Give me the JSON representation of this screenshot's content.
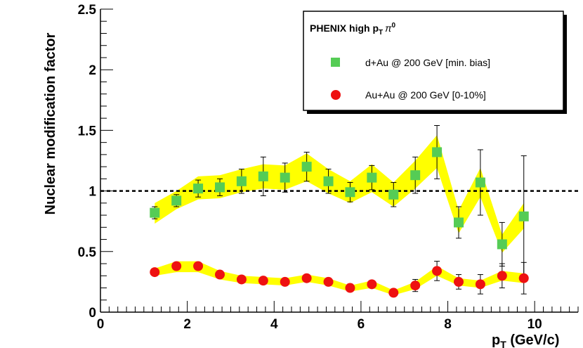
{
  "chart_data": {
    "type": "scatter",
    "title": "",
    "xlabel_main": "p",
    "xlabel_sub": "T",
    "xlabel_unit": " (GeV/c)",
    "ylabel": "Nuclear modification factor",
    "xlim": [
      0,
      11
    ],
    "ylim": [
      0,
      2.5
    ],
    "x_ticks": [
      0,
      2,
      4,
      6,
      8,
      10
    ],
    "y_ticks": [
      0,
      0.5,
      1,
      1.5,
      2,
      2.5
    ],
    "y_tick_labels": [
      "0",
      "0.5",
      "1",
      "1.5",
      "2",
      "2.5"
    ],
    "grid": false,
    "reference_line": 1,
    "legend": {
      "placement": "top-right",
      "title_main": "PHENIX high p",
      "title_sub": "T",
      "title_pi": "π",
      "title_sup": "0"
    },
    "series": [
      {
        "name": "d+Au @ 200 GeV [min. bias]",
        "marker": "square",
        "color": "#55cc55",
        "band_color": "#ffff00",
        "x": [
          1.25,
          1.75,
          2.25,
          2.75,
          3.25,
          3.75,
          4.25,
          4.75,
          5.25,
          5.75,
          6.25,
          6.75,
          7.25,
          7.75,
          8.25,
          8.75,
          9.25,
          9.75
        ],
        "y": [
          0.82,
          0.92,
          1.02,
          1.03,
          1.08,
          1.12,
          1.11,
          1.2,
          1.08,
          0.99,
          1.11,
          0.97,
          1.13,
          1.32,
          0.74,
          1.07,
          0.56,
          0.79
        ],
        "err": [
          0.05,
          0.05,
          0.07,
          0.07,
          0.1,
          0.16,
          0.12,
          0.12,
          0.1,
          0.08,
          0.1,
          0.1,
          0.15,
          0.22,
          0.13,
          0.27,
          0.18,
          0.5
        ],
        "band_lo": [
          0.73,
          0.85,
          0.93,
          0.94,
          0.99,
          1.02,
          1.01,
          1.08,
          0.98,
          0.9,
          0.99,
          0.87,
          1.02,
          1.19,
          0.65,
          0.95,
          0.49,
          0.69
        ],
        "band_hi": [
          0.9,
          1.0,
          1.12,
          1.13,
          1.18,
          1.22,
          1.21,
          1.31,
          1.18,
          1.08,
          1.22,
          1.07,
          1.25,
          1.46,
          0.84,
          1.19,
          0.64,
          0.9
        ]
      },
      {
        "name": "Au+Au @ 200 GeV [0-10%]",
        "marker": "circle",
        "color": "#ee1111",
        "band_color": "#ffff00",
        "x": [
          1.25,
          1.75,
          2.25,
          2.75,
          3.25,
          3.75,
          4.25,
          4.75,
          5.25,
          5.75,
          6.25,
          6.75,
          7.25,
          7.75,
          8.25,
          8.75,
          9.25,
          9.75
        ],
        "y": [
          0.33,
          0.38,
          0.38,
          0.31,
          0.27,
          0.26,
          0.25,
          0.28,
          0.25,
          0.2,
          0.23,
          0.16,
          0.22,
          0.34,
          0.25,
          0.23,
          0.3,
          0.28
        ],
        "err": [
          0.02,
          0.02,
          0.02,
          0.02,
          0.02,
          0.02,
          0.02,
          0.02,
          0.02,
          0.02,
          0.03,
          0.03,
          0.05,
          0.08,
          0.06,
          0.08,
          0.1,
          0.13
        ],
        "band_lo": [
          0.3,
          0.33,
          0.33,
          0.27,
          0.24,
          0.23,
          0.22,
          0.25,
          0.22,
          0.17,
          0.2,
          0.14,
          0.19,
          0.3,
          0.22,
          0.2,
          0.26,
          0.24
        ],
        "band_hi": [
          0.36,
          0.42,
          0.42,
          0.34,
          0.3,
          0.29,
          0.28,
          0.31,
          0.28,
          0.22,
          0.26,
          0.18,
          0.25,
          0.38,
          0.28,
          0.26,
          0.34,
          0.32
        ]
      }
    ]
  }
}
